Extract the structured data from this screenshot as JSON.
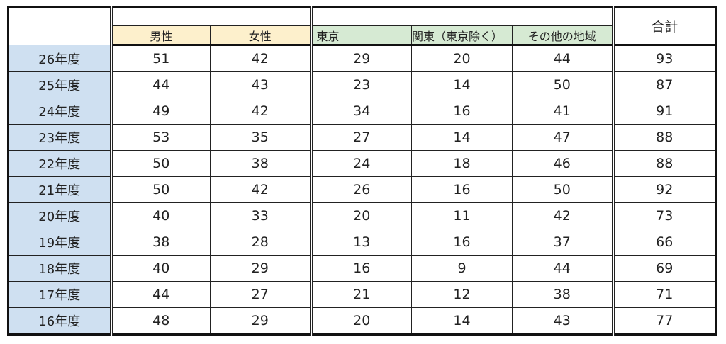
{
  "header": {
    "male": "男性",
    "female": "女性",
    "tokyo": "東京",
    "kanto": "関東（東京除く）",
    "other": "その他の地域",
    "total": "合計"
  },
  "rows": [
    {
      "year": "26年度",
      "male": "51",
      "female": "42",
      "tokyo": "29",
      "kanto": "20",
      "other": "44",
      "total": "93"
    },
    {
      "year": "25年度",
      "male": "44",
      "female": "43",
      "tokyo": "23",
      "kanto": "14",
      "other": "50",
      "total": "87"
    },
    {
      "year": "24年度",
      "male": "49",
      "female": "42",
      "tokyo": "34",
      "kanto": "16",
      "other": "41",
      "total": "91"
    },
    {
      "year": "23年度",
      "male": "53",
      "female": "35",
      "tokyo": "27",
      "kanto": "14",
      "other": "47",
      "total": "88"
    },
    {
      "year": "22年度",
      "male": "50",
      "female": "38",
      "tokyo": "24",
      "kanto": "18",
      "other": "46",
      "total": "88"
    },
    {
      "year": "21年度",
      "male": "50",
      "female": "42",
      "tokyo": "26",
      "kanto": "16",
      "other": "50",
      "total": "92"
    },
    {
      "year": "20年度",
      "male": "40",
      "female": "33",
      "tokyo": "20",
      "kanto": "11",
      "other": "42",
      "total": "73"
    },
    {
      "year": "19年度",
      "male": "38",
      "female": "28",
      "tokyo": "13",
      "kanto": "16",
      "other": "37",
      "total": "66"
    },
    {
      "year": "18年度",
      "male": "40",
      "female": "29",
      "tokyo": "16",
      "kanto": "9",
      "other": "44",
      "total": "69"
    },
    {
      "year": "17年度",
      "male": "44",
      "female": "27",
      "tokyo": "21",
      "kanto": "12",
      "other": "38",
      "total": "71"
    },
    {
      "year": "16年度",
      "male": "48",
      "female": "29",
      "tokyo": "20",
      "kanto": "14",
      "other": "43",
      "total": "77"
    }
  ],
  "colors": {
    "year_bg": "#cfe0f1",
    "gender_bg": "#fdf0cc",
    "region_bg": "#d6ead3"
  }
}
